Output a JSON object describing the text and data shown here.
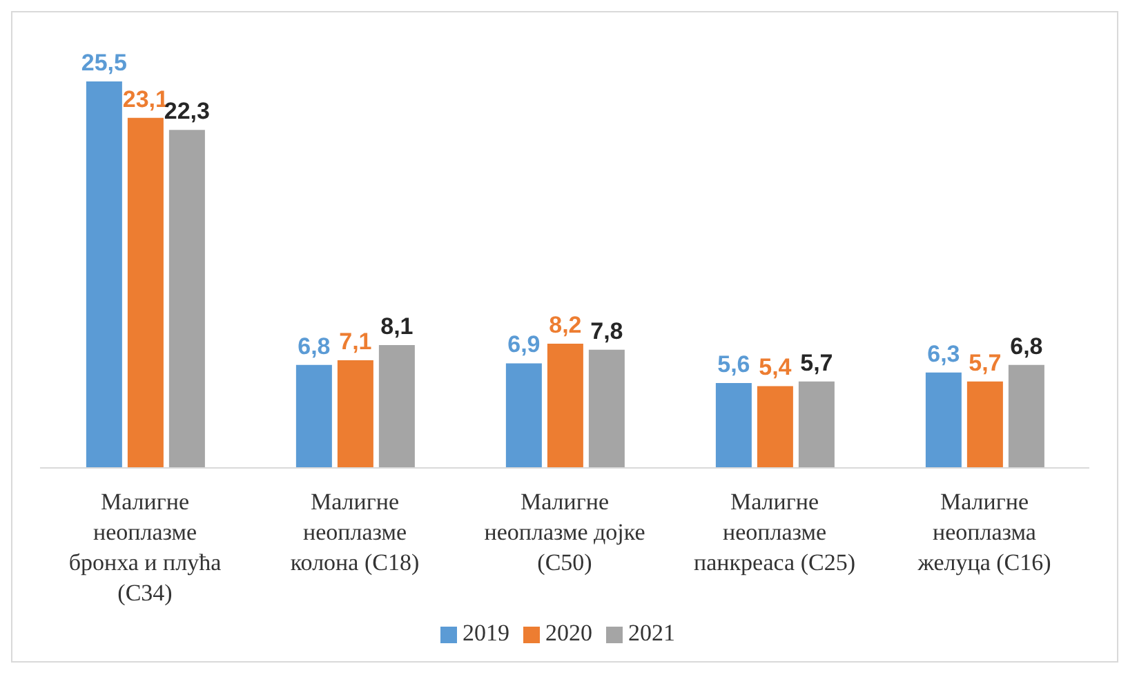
{
  "chart_data": {
    "type": "bar",
    "categories": [
      "Малигне неоплазме бронха и плућа (C34)",
      "Малигне неоплазме колона (C18)",
      "Малигне неоплазме дојке (C50)",
      "Малигне неоплазме панкреаса (C25)",
      "Малигне неоплазма желуца (C16)"
    ],
    "series": [
      {
        "name": "2019",
        "color": "#5b9bd5",
        "values": [
          25.5,
          6.8,
          6.9,
          5.6,
          6.3
        ],
        "value_labels": [
          "25,5",
          "6,8",
          "6,9",
          "5,6",
          "6,3"
        ]
      },
      {
        "name": "2020",
        "color": "#ed7d31",
        "values": [
          23.1,
          7.1,
          8.2,
          5.4,
          5.7
        ],
        "value_labels": [
          "23,1",
          "7,1",
          "8,2",
          "5,4",
          "5,7"
        ]
      },
      {
        "name": "2021",
        "color": "#a5a5a5",
        "values": [
          22.3,
          8.1,
          7.8,
          5.7,
          6.8
        ],
        "value_labels": [
          "22,3",
          "8,1",
          "7,8",
          "5,7",
          "6,8"
        ]
      }
    ],
    "legend": "bottom",
    "grid": false
  }
}
